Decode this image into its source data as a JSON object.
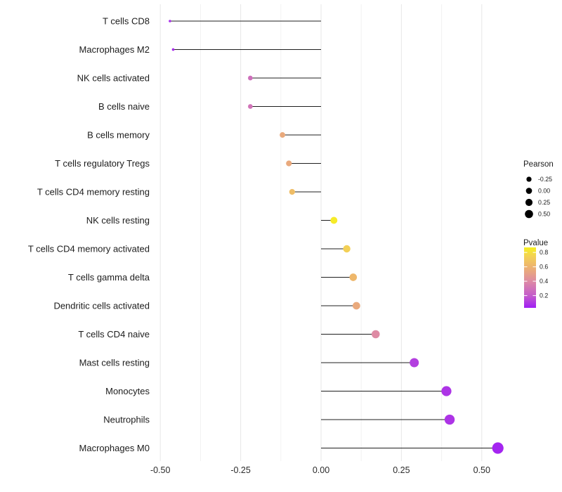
{
  "chart_data": {
    "type": "lollipop",
    "title": "",
    "xlabel": "",
    "ylabel": "",
    "background": "#ffffff",
    "grid": "vertical major+minor, light gray, no axis lines or ticks (theme_minimal)",
    "xlim": [
      -0.545,
      0.59
    ],
    "x_ticks": [
      {
        "label": "-0.50",
        "value": -0.5
      },
      {
        "label": "-0.25",
        "value": -0.25
      },
      {
        "label": "0.00",
        "value": 0.0
      },
      {
        "label": "0.25",
        "value": 0.25
      },
      {
        "label": "0.50",
        "value": 0.5
      }
    ],
    "x_minor_ticks": [
      -0.375,
      -0.125,
      0.125,
      0.375
    ],
    "points": [
      {
        "label": "T cells CD8",
        "pearson": -0.47,
        "pvalue": 0.07
      },
      {
        "label": "Macrophages M2",
        "pearson": -0.46,
        "pvalue": 0.07
      },
      {
        "label": "NK cells activated",
        "pearson": -0.22,
        "pvalue": 0.28
      },
      {
        "label": "B cells naive",
        "pearson": -0.22,
        "pvalue": 0.3
      },
      {
        "label": "B cells memory",
        "pearson": -0.12,
        "pvalue": 0.55
      },
      {
        "label": "T cells regulatory  Tregs",
        "pearson": -0.1,
        "pvalue": 0.55
      },
      {
        "label": "T cells CD4 memory resting",
        "pearson": -0.09,
        "pvalue": 0.65
      },
      {
        "label": "NK cells resting",
        "pearson": 0.04,
        "pvalue": 0.85
      },
      {
        "label": "T cells CD4 memory activated",
        "pearson": 0.08,
        "pvalue": 0.74
      },
      {
        "label": "T cells gamma delta",
        "pearson": 0.1,
        "pvalue": 0.62
      },
      {
        "label": "Dendritic cells activated",
        "pearson": 0.11,
        "pvalue": 0.55
      },
      {
        "label": "T cells CD4 naive",
        "pearson": 0.17,
        "pvalue": 0.4
      },
      {
        "label": "Mast cells resting",
        "pearson": 0.29,
        "pvalue": 0.12
      },
      {
        "label": "Monocytes",
        "pearson": 0.39,
        "pvalue": 0.09
      },
      {
        "label": "Neutrophils",
        "pearson": 0.4,
        "pvalue": 0.09
      },
      {
        "label": "Macrophages M0",
        "pearson": 0.55,
        "pvalue": 0.05
      }
    ],
    "legend_size": {
      "title": "Pearson",
      "items": [
        {
          "label": "-0.25",
          "value": -0.25
        },
        {
          "label": "0.00",
          "value": 0.0
        },
        {
          "label": "0.25",
          "value": 0.25
        },
        {
          "label": "0.50",
          "value": 0.5
        }
      ]
    },
    "legend_color": {
      "title": "Pvalue",
      "ticks": [
        {
          "label": "0.8",
          "value": 0.8
        },
        {
          "label": "0.6",
          "value": 0.6
        },
        {
          "label": "0.4",
          "value": 0.4
        },
        {
          "label": "0.2",
          "value": 0.2
        }
      ],
      "range": [
        0.03,
        0.87
      ],
      "gradient_stops": [
        {
          "p": 0.03,
          "color": "#A01EF5"
        },
        {
          "p": 0.2,
          "color": "#C45CCB"
        },
        {
          "p": 0.4,
          "color": "#DE8BA4"
        },
        {
          "p": 0.6,
          "color": "#EDB36F"
        },
        {
          "p": 0.75,
          "color": "#F3D254"
        },
        {
          "p": 0.87,
          "color": "#F6F020"
        }
      ]
    },
    "colors": {
      "stem": "#1f1f1f",
      "axis_text": "#1c1c1c",
      "tick_text": "#2b2b2b",
      "legend_text": "#1c1c1c",
      "grid_major": "#e7e7e7",
      "grid_minor": "#f2f2f2",
      "background": "#ffffff"
    }
  }
}
